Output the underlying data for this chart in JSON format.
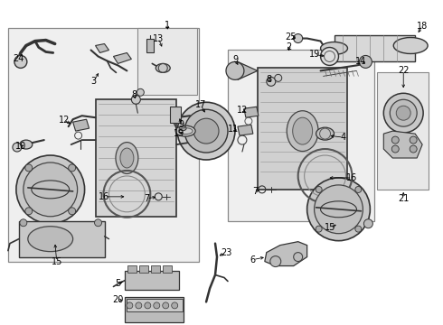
{
  "bg_color": "#ffffff",
  "fig_width": 4.9,
  "fig_height": 3.6,
  "dpi": 100,
  "box_fill": "#ececec",
  "box_edge": "#888888",
  "part_color": "#c8c8c8",
  "part_edge": "#333333",
  "label_fontsize": 7.0
}
